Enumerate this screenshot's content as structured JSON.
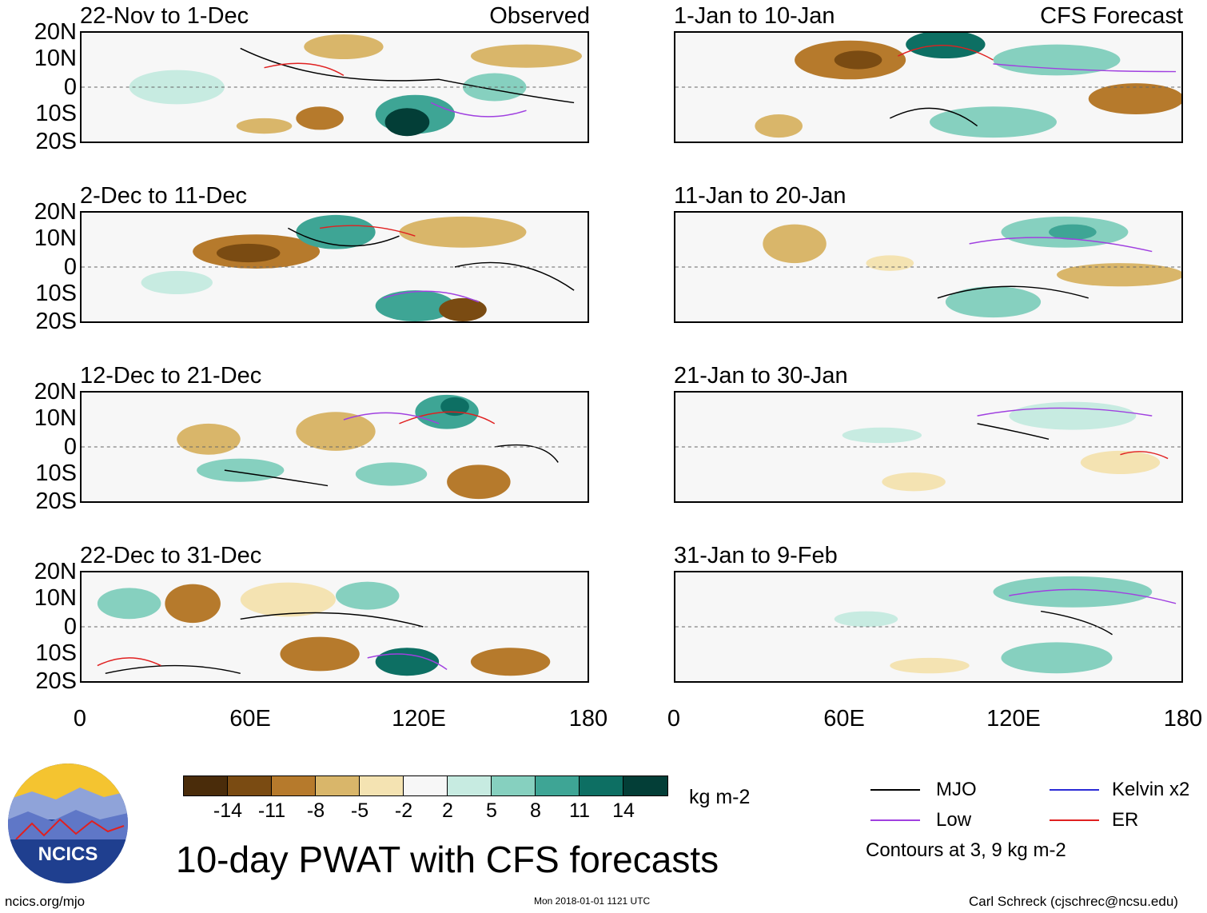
{
  "panels": {
    "observed": [
      {
        "title": "22-Nov to 1-Dec",
        "tag": "Observed"
      },
      {
        "title": "2-Dec to 11-Dec",
        "tag": ""
      },
      {
        "title": "12-Dec to 21-Dec",
        "tag": ""
      },
      {
        "title": "22-Dec to 31-Dec",
        "tag": ""
      }
    ],
    "forecast": [
      {
        "title": "1-Jan to 10-Jan",
        "tag": "CFS Forecast"
      },
      {
        "title": "11-Jan to 20-Jan",
        "tag": ""
      },
      {
        "title": "21-Jan to 30-Jan",
        "tag": ""
      },
      {
        "title": "31-Jan to 9-Feb",
        "tag": ""
      }
    ]
  },
  "lat_labels": [
    "20N",
    "10N",
    "0",
    "10S",
    "20S"
  ],
  "lon_labels": [
    "0",
    "60E",
    "120E",
    "180"
  ],
  "colorbar": {
    "colors": [
      "#4a2c0a",
      "#7a4b12",
      "#b67a2c",
      "#d9b66a",
      "#f4e3b2",
      "#f7f7f7",
      "#c7ebe1",
      "#86d0bf",
      "#3ea595",
      "#0d6f63",
      "#033e37"
    ],
    "ticks": [
      "-14",
      "-11",
      "-8",
      "-5",
      "-2",
      "2",
      "5",
      "8",
      "11",
      "14"
    ],
    "unit": "kg m-2"
  },
  "legend": {
    "items": [
      {
        "label": "MJO",
        "color": "#000000"
      },
      {
        "label": "Kelvin x2",
        "color": "#2b2bd6"
      },
      {
        "label": "Low",
        "color": "#a040e0"
      },
      {
        "label": "ER",
        "color": "#e02020"
      }
    ],
    "note": "Contours at 3, 9 kg m-2"
  },
  "title": "10-day PWAT with CFS forecasts",
  "logo_text": "NCICS",
  "footer": {
    "left": "ncics.org/mjo",
    "center": "Mon 2018-01-01 1121 UTC",
    "right": "Carl Schreck (cjschrec@ncsu.edu)"
  }
}
